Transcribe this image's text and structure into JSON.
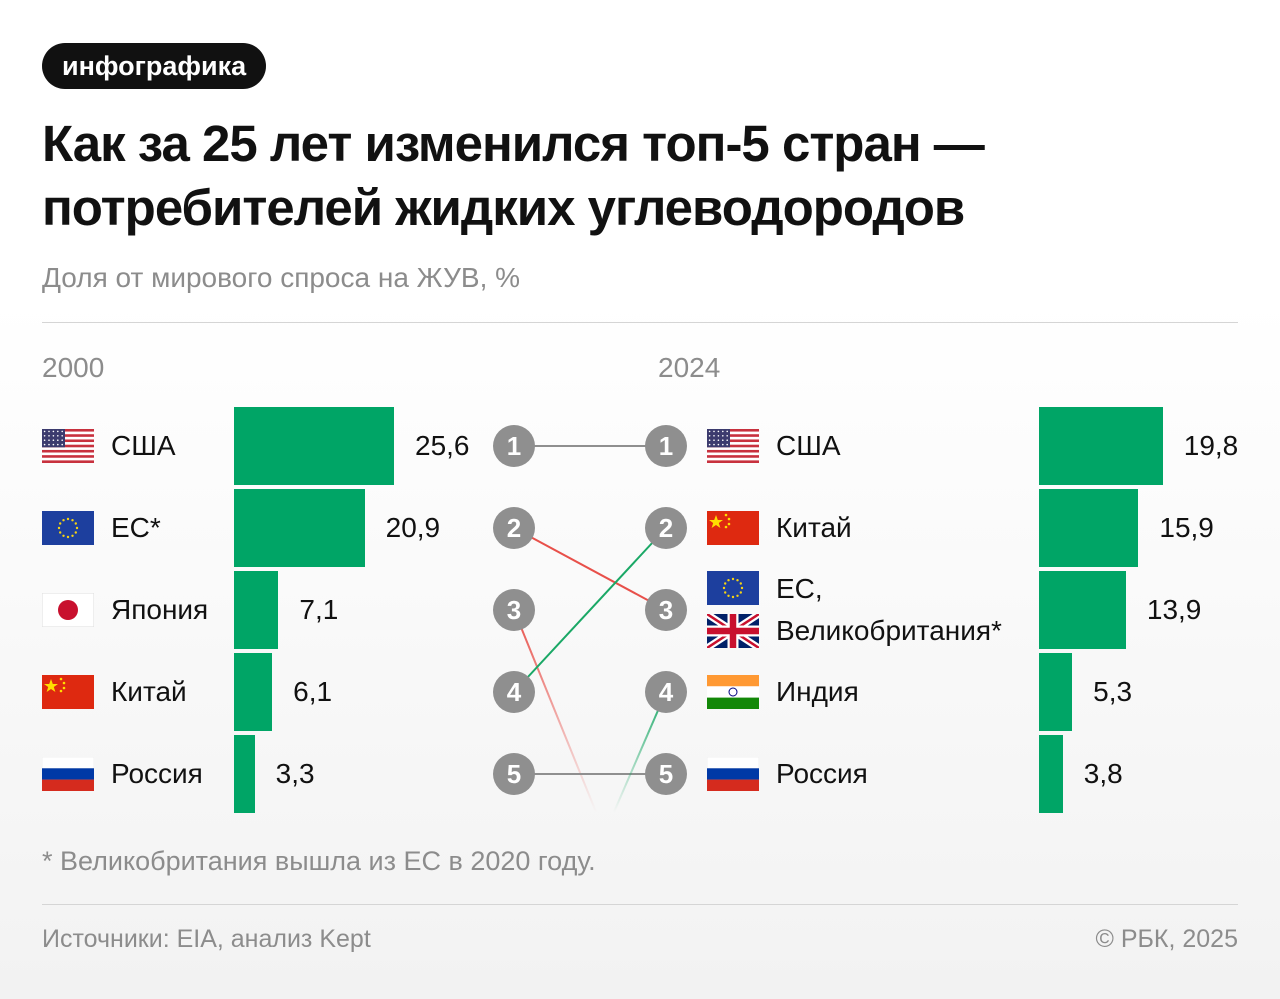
{
  "badge": "инфографика",
  "title": "Как за 25 лет изменился топ-5 стран — потребителей жидких углеводородов",
  "subtitle": "Доля от мирового спроса на ЖУВ, %",
  "footnote": "* Великобритания вышла из ЕС в 2020 году.",
  "source": "Источники: EIA, анализ Kept",
  "copyright": "© РБК, 2025",
  "colors": {
    "bar": "#00a566",
    "rank_circle": "#8f8f8f",
    "down_line": "#e8504a",
    "up_line": "#1aa866",
    "same_line": "#8f8f8f"
  },
  "chart_data": {
    "type": "bar",
    "title": "Как за 25 лет изменился топ-5 стран — потребителей жидких углеводородов",
    "ylabel": "Доля от мирового спроса на ЖУВ, %",
    "panels": [
      {
        "year": "2000",
        "categories": [
          "США",
          "ЕС*",
          "Япония",
          "Китай",
          "Россия"
        ],
        "flags": [
          "us-flag-icon",
          "eu-flag-icon",
          "japan-flag-icon",
          "china-flag-icon",
          "russia-flag-icon"
        ],
        "values": [
          25.6,
          20.9,
          7.1,
          6.1,
          3.3
        ],
        "labels": [
          "25,6",
          "20,9",
          "7,1",
          "6,1",
          "3,3"
        ]
      },
      {
        "year": "2024",
        "categories": [
          "США",
          "Китай",
          "ЕС,\nВеликобритания*",
          "Индия",
          "Россия"
        ],
        "flags": [
          "us-flag-icon",
          "china-flag-icon",
          "eu-flag-icon uk-flag-icon",
          "india-flag-icon",
          "russia-flag-icon"
        ],
        "values": [
          19.8,
          15.9,
          13.9,
          5.3,
          3.8
        ],
        "labels": [
          "19,8",
          "15,9",
          "13,9",
          "5,3",
          "3,8"
        ]
      }
    ],
    "ranks": [
      "1",
      "2",
      "3",
      "4",
      "5"
    ],
    "rank_changes": [
      {
        "country": "США",
        "from": 1,
        "to": 1
      },
      {
        "country": "ЕС",
        "from": 2,
        "to": 3
      },
      {
        "country": "Япония",
        "from": 3,
        "to": null
      },
      {
        "country": "Китай",
        "from": 4,
        "to": 2
      },
      {
        "country": "Россия",
        "from": 5,
        "to": 5
      },
      {
        "country": "Индия",
        "from": null,
        "to": 4
      }
    ]
  }
}
